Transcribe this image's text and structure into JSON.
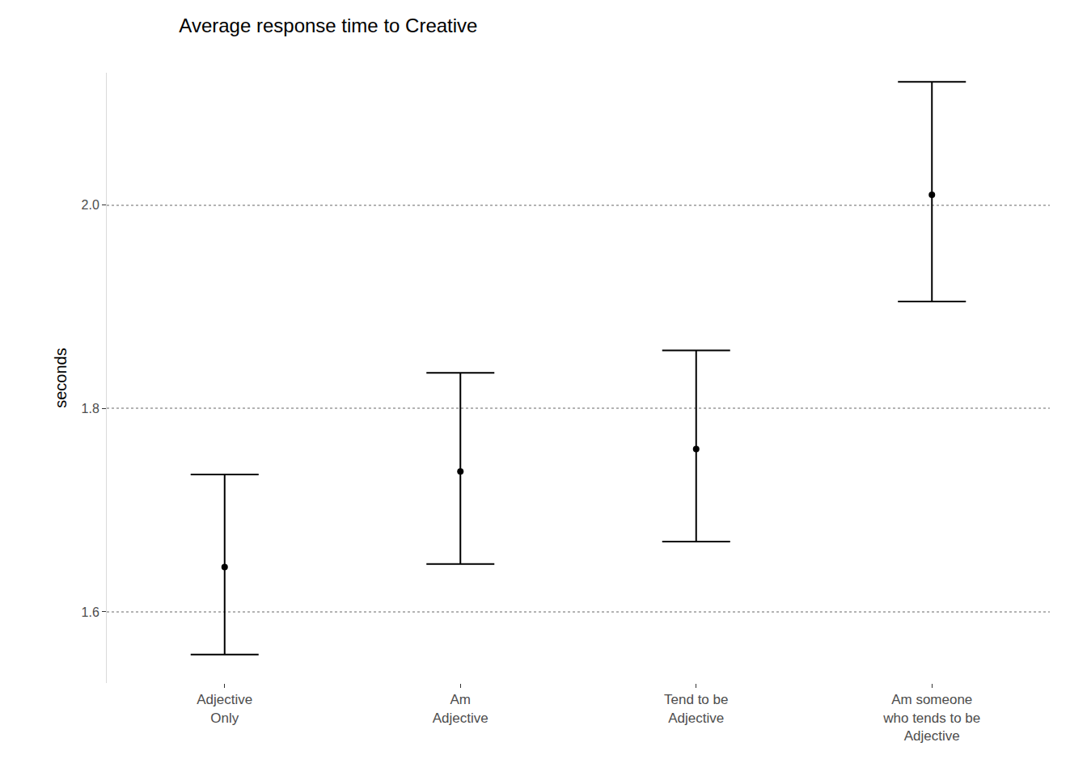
{
  "chart_data": {
    "type": "scatter",
    "title": "Average response time to Creative",
    "y_label": "seconds",
    "categories": [
      "Adjective\nOnly",
      "Am\nAdjective",
      "Tend to be\nAdjective",
      "Am someone\nwho tends to be\nAdjective"
    ],
    "values": [
      1.644,
      1.738,
      1.76,
      2.01
    ],
    "error_low": [
      1.558,
      1.647,
      1.669,
      1.905
    ],
    "error_high": [
      1.735,
      1.835,
      1.857,
      2.121
    ],
    "color": "#000000",
    "marker": "circle",
    "ylim": [
      1.53,
      2.13
    ],
    "yticks": [
      1.6,
      1.8,
      2.0
    ],
    "grid": true
  }
}
